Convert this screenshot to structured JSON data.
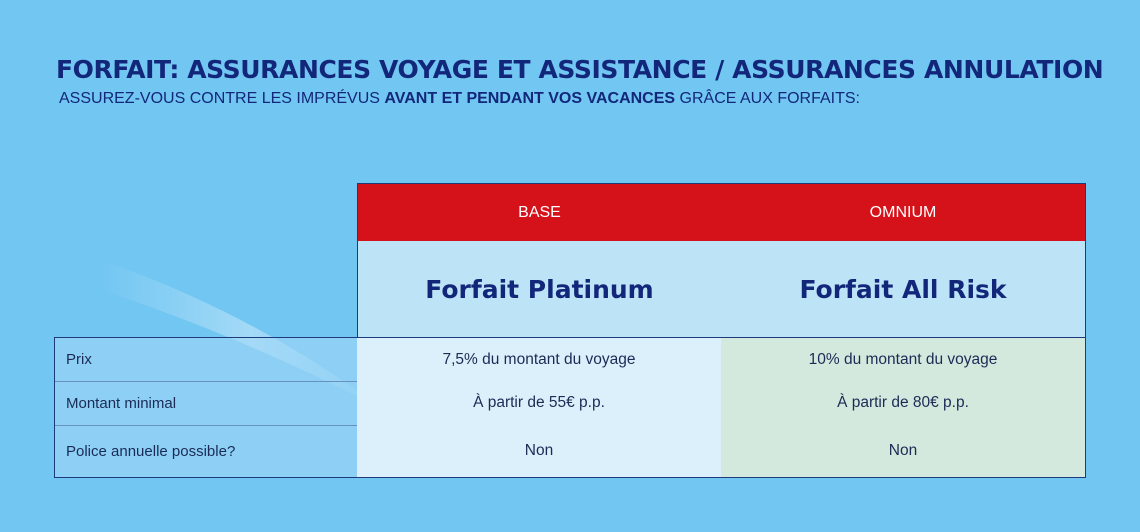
{
  "header": {
    "title": "FORFAIT: ASSURANCES VOYAGE ET ASSISTANCE / ASSURANCES ANNULATION",
    "subtitle_part1": "ASSUREZ-VOUS CONTRE LES IMPRÉVUS ",
    "subtitle_bold": "AVANT ET PENDANT VOS VACANCES",
    "subtitle_part2": " GRÂCE AUX FORFAITS:"
  },
  "table": {
    "columns": [
      {
        "category": "BASE",
        "plan": "Forfait Platinum"
      },
      {
        "category": "OMNIUM",
        "plan": "Forfait All Risk"
      }
    ],
    "rows": [
      {
        "label": "Prix",
        "values": [
          "7,5% du montant du voyage",
          "10% du montant du voyage"
        ]
      },
      {
        "label": "Montant minimal",
        "values": [
          "À partir de 55€ p.p.",
          "À partir de 80€ p.p."
        ]
      },
      {
        "label": "Police annuelle possible?",
        "values": [
          "Non",
          "Non"
        ]
      }
    ]
  },
  "colors": {
    "background": "#72c6f2",
    "title": "#12277a",
    "header_red": "#d51219",
    "plan_row": "#bde3f7",
    "column1_values": "#dbf0fb",
    "column2_values": "#d4e9dd",
    "border": "#1f3a7c"
  }
}
